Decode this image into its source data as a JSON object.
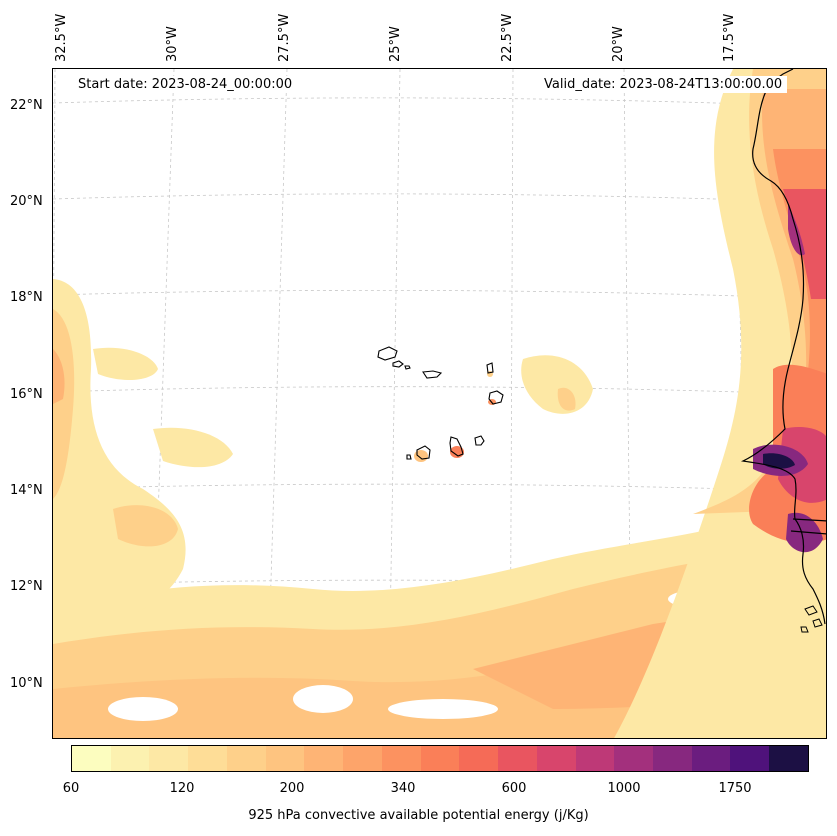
{
  "map": {
    "start_date": "Start date: 2023-08-24_00:00:00",
    "valid_date": "Valid_date: 2023-08-24T13:00:00.00",
    "lon_labels": [
      "32.5°W",
      "30°W",
      "27.5°W",
      "25°W",
      "22.5°W",
      "20°W",
      "17.5°W"
    ],
    "lat_labels": [
      "22°N",
      "20°N",
      "18°N",
      "16°N",
      "14°N",
      "12°N",
      "10°N"
    ]
  },
  "colorbar": {
    "label": "925 hPa convective available potential energy (j/Kg)",
    "ticks": [
      "60",
      "120",
      "200",
      "340",
      "600",
      "1000",
      "1750"
    ],
    "colors": [
      "#fcfdbf",
      "#fcf1b0",
      "#fde8a5",
      "#fedd97",
      "#fed08a",
      "#fec480",
      "#feb475",
      "#fda46a",
      "#fc9260",
      "#fa7f58",
      "#f56b57",
      "#e95560",
      "#d8456c",
      "#be3977",
      "#a3307d",
      "#87287f",
      "#6b1d7f",
      "#4f127b",
      "#1c1044"
    ]
  }
}
